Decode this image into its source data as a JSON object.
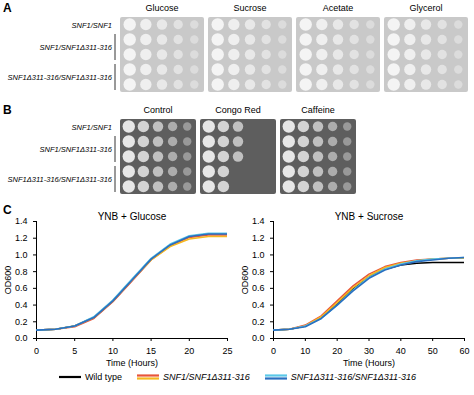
{
  "panels": [
    {
      "label": "A",
      "conditions": [
        "Glucose",
        "Sucrose",
        "Acetate",
        "Glycerol"
      ],
      "growth": [
        [
          5,
          5,
          5,
          5,
          5
        ],
        [
          5,
          5,
          5,
          5,
          5
        ],
        [
          5,
          5,
          5,
          5,
          5
        ],
        [
          5,
          5,
          5,
          5,
          5
        ]
      ]
    },
    {
      "label": "B",
      "conditions": [
        "Control",
        "Congo Red",
        "Caffeine"
      ],
      "growth": [
        [
          5,
          5,
          5,
          5,
          5
        ],
        [
          3,
          3,
          3,
          2,
          2
        ],
        [
          5,
          5,
          5,
          5,
          5
        ]
      ]
    }
  ],
  "strains": [
    {
      "label": "SNF1/SNF1",
      "rows": 1
    },
    {
      "label": "SNF1/SNF1Δ311-316",
      "rows": 2
    },
    {
      "label": "SNF1Δ311-316/SNF1Δ311-316",
      "rows": 2
    }
  ],
  "panel_c_label": "C",
  "chart_data": [
    {
      "type": "line",
      "title": "YNB + Glucose",
      "x_label": "Time (Hours)",
      "y_label": "OD600",
      "xlim": [
        0,
        25
      ],
      "xticks": [
        0,
        5,
        10,
        15,
        20,
        25
      ],
      "ylim": [
        0,
        1.4
      ],
      "yticks": [
        0,
        0.2,
        0.4,
        0.6,
        0.8,
        1,
        1.2,
        1.4
      ],
      "legend": "bottom",
      "x": [
        0,
        2.5,
        5,
        7.5,
        10,
        12.5,
        15,
        17.5,
        20,
        22.5,
        25
      ],
      "series": [
        {
          "name": "Wild type",
          "color": "#000000",
          "values": [
            0.1,
            0.11,
            0.15,
            0.25,
            0.45,
            0.7,
            0.95,
            1.12,
            1.22,
            1.25,
            1.25
          ]
        },
        {
          "name": "SNF1/SNF1Δ311-316",
          "color": "#e8553a",
          "values": [
            0.1,
            0.11,
            0.14,
            0.24,
            0.44,
            0.69,
            0.94,
            1.11,
            1.21,
            1.24,
            1.24
          ]
        },
        {
          "name": "SNF1/SNF1Δ311-316",
          "color": "#f5b820",
          "values": [
            0.1,
            0.11,
            0.15,
            0.25,
            0.45,
            0.7,
            0.94,
            1.1,
            1.19,
            1.22,
            1.22
          ]
        },
        {
          "name": "SNF1Δ311-316/SNF1Δ311-316",
          "color": "#5bc8e8",
          "values": [
            0.1,
            0.11,
            0.15,
            0.26,
            0.46,
            0.71,
            0.96,
            1.13,
            1.23,
            1.26,
            1.26
          ]
        },
        {
          "name": "SNF1Δ311-316/SNF1Δ311-316",
          "color": "#2a6fc0",
          "values": [
            0.1,
            0.11,
            0.15,
            0.25,
            0.45,
            0.7,
            0.95,
            1.12,
            1.22,
            1.25,
            1.25
          ]
        }
      ]
    },
    {
      "type": "line",
      "title": "YNB + Sucrose",
      "x_label": "Time (Hours)",
      "y_label": "OD600",
      "xlim": [
        0,
        60
      ],
      "xticks": [
        0,
        10,
        20,
        30,
        40,
        50,
        60
      ],
      "ylim": [
        0,
        1.4
      ],
      "yticks": [
        0,
        0.2,
        0.4,
        0.6,
        0.8,
        1,
        1.2,
        1.4
      ],
      "legend": "bottom",
      "x": [
        0,
        5,
        10,
        15,
        20,
        25,
        30,
        35,
        40,
        45,
        50,
        55,
        60
      ],
      "series": [
        {
          "name": "Wild type",
          "color": "#000000",
          "values": [
            0.1,
            0.11,
            0.15,
            0.25,
            0.42,
            0.6,
            0.74,
            0.83,
            0.88,
            0.9,
            0.91,
            0.91,
            0.91
          ]
        },
        {
          "name": "SNF1/SNF1Δ311-316",
          "color": "#e8553a",
          "values": [
            0.1,
            0.11,
            0.16,
            0.27,
            0.45,
            0.63,
            0.77,
            0.86,
            0.91,
            0.94,
            0.95,
            0.96,
            0.96
          ]
        },
        {
          "name": "SNF1/SNF1Δ311-316",
          "color": "#f5b820",
          "values": [
            0.1,
            0.11,
            0.15,
            0.26,
            0.43,
            0.61,
            0.75,
            0.85,
            0.9,
            0.93,
            0.95,
            0.96,
            0.96
          ]
        },
        {
          "name": "SNF1Δ311-316/SNF1Δ311-316",
          "color": "#5bc8e8",
          "values": [
            0.1,
            0.11,
            0.15,
            0.24,
            0.4,
            0.58,
            0.73,
            0.83,
            0.89,
            0.93,
            0.95,
            0.96,
            0.97
          ]
        },
        {
          "name": "SNF1Δ311-316/SNF1Δ311-316",
          "color": "#2a6fc0",
          "values": [
            0.1,
            0.11,
            0.14,
            0.24,
            0.4,
            0.57,
            0.72,
            0.82,
            0.88,
            0.92,
            0.94,
            0.96,
            0.97
          ]
        }
      ]
    }
  ]
}
